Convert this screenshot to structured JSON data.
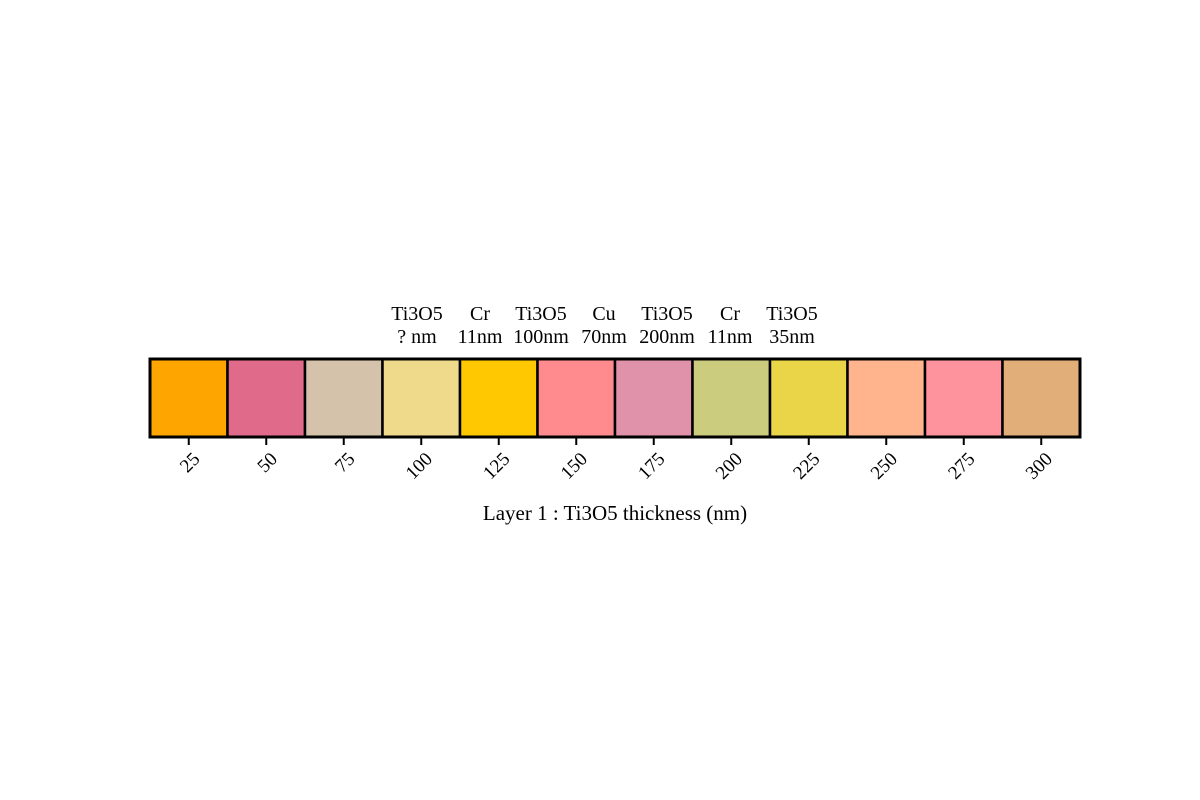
{
  "chart_data": {
    "type": "heatmap",
    "title": "Ti3O5  Cr  Ti3O5  Cu  Ti3O5  Cr  Ti3O5 / ? nm  11nm  100nm  70nm  200nm  11nm  35nm",
    "stack_layers": [
      {
        "material": "Ti3O5",
        "thickness": "? nm"
      },
      {
        "material": "Cr",
        "thickness": "11nm"
      },
      {
        "material": "Ti3O5",
        "thickness": "100nm"
      },
      {
        "material": "Cu",
        "thickness": "70nm"
      },
      {
        "material": "Ti3O5",
        "thickness": "200nm"
      },
      {
        "material": "Cr",
        "thickness": "11nm"
      },
      {
        "material": "Ti3O5",
        "thickness": "35nm"
      }
    ],
    "xlabel": "Layer 1 : Ti3O5 thickness (nm)",
    "ylabel": "",
    "x": [
      25,
      50,
      75,
      100,
      125,
      150,
      175,
      200,
      225,
      250,
      275,
      300
    ],
    "tick_labels": [
      "25",
      "50",
      "75",
      "100",
      "125",
      "150",
      "175",
      "200",
      "225",
      "250",
      "275",
      "300"
    ],
    "colors": [
      "#FFA500",
      "#E06A8A",
      "#D4C2AA",
      "#EEDA8A",
      "#FFC800",
      "#FF8B8F",
      "#E092AA",
      "#CCCC7F",
      "#EAD447",
      "#FFB48E",
      "#FF939D",
      "#E1AE7A"
    ],
    "xlim": [
      12.5,
      312.5
    ],
    "grid": false,
    "legend": "none"
  }
}
